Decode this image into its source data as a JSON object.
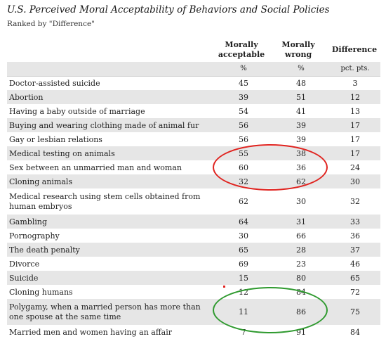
{
  "title": "U.S. Perceived Moral Acceptability of Behaviors and Social Policies",
  "subtitle": "Ranked by \"Difference\"",
  "headers": {
    "acceptable": [
      "Morally",
      "acceptable"
    ],
    "wrong": [
      "Morally",
      "wrong"
    ],
    "difference": "Difference"
  },
  "units": {
    "acceptable": "%",
    "wrong": "%",
    "difference": "pct. pts."
  },
  "rows": [
    {
      "label": "Doctor-assisted suicide",
      "acceptable": "45",
      "wrong": "48",
      "difference": "3"
    },
    {
      "label": "Abortion",
      "acceptable": "39",
      "wrong": "51",
      "difference": "12"
    },
    {
      "label": "Having a baby outside of marriage",
      "acceptable": "54",
      "wrong": "41",
      "difference": "13"
    },
    {
      "label": "Buying and wearing clothing made of animal fur",
      "acceptable": "56",
      "wrong": "39",
      "difference": "17"
    },
    {
      "label": "Gay or lesbian relations",
      "acceptable": "56",
      "wrong": "39",
      "difference": "17"
    },
    {
      "label": "Medical testing on animals",
      "acceptable": "55",
      "wrong": "38",
      "difference": "17"
    },
    {
      "label": "Sex between an unmarried man and woman",
      "acceptable": "60",
      "wrong": "36",
      "difference": "24"
    },
    {
      "label": "Cloning animals",
      "acceptable": "32",
      "wrong": "62",
      "difference": "30"
    },
    {
      "label": "Medical research using stem cells obtained from human embryos",
      "acceptable": "62",
      "wrong": "30",
      "difference": "32"
    },
    {
      "label": "Gambling",
      "acceptable": "64",
      "wrong": "31",
      "difference": "33"
    },
    {
      "label": "Pornography",
      "acceptable": "30",
      "wrong": "66",
      "difference": "36"
    },
    {
      "label": "The death penalty",
      "acceptable": "65",
      "wrong": "28",
      "difference": "37"
    },
    {
      "label": "Divorce",
      "acceptable": "69",
      "wrong": "23",
      "difference": "46"
    },
    {
      "label": "Suicide",
      "acceptable": "15",
      "wrong": "80",
      "difference": "65"
    },
    {
      "label": "Cloning humans",
      "acceptable": "12",
      "wrong": "84",
      "difference": "72"
    },
    {
      "label": "Polygamy, when a married person has more than one spouse at the same time",
      "acceptable": "11",
      "wrong": "86",
      "difference": "75"
    },
    {
      "label": "Married men and women having an affair",
      "acceptable": "7",
      "wrong": "91",
      "difference": "84"
    }
  ],
  "colors": {
    "shade": "#e6e6e6",
    "red_annotation": "#e0231f",
    "green_annotation": "#2f9a2f"
  },
  "chart_data": {
    "type": "table",
    "title": "U.S. Perceived Moral Acceptability of Behaviors and Social Policies",
    "subtitle": "Ranked by \"Difference\"",
    "columns": [
      "Morally acceptable (%)",
      "Morally wrong (%)",
      "Difference (pct. pts.)"
    ],
    "rows": [
      [
        "Doctor-assisted suicide",
        45,
        48,
        3
      ],
      [
        "Abortion",
        39,
        51,
        12
      ],
      [
        "Having a baby outside of marriage",
        54,
        41,
        13
      ],
      [
        "Buying and wearing clothing made of animal fur",
        56,
        39,
        17
      ],
      [
        "Gay or lesbian relations",
        56,
        39,
        17
      ],
      [
        "Medical testing on animals",
        55,
        38,
        17
      ],
      [
        "Sex between an unmarried man and woman",
        60,
        36,
        24
      ],
      [
        "Cloning animals",
        32,
        62,
        30
      ],
      [
        "Medical research using stem cells obtained from human embryos",
        62,
        30,
        32
      ],
      [
        "Gambling",
        64,
        31,
        33
      ],
      [
        "Pornography",
        30,
        66,
        36
      ],
      [
        "The death penalty",
        65,
        28,
        37
      ],
      [
        "Divorce",
        69,
        23,
        46
      ],
      [
        "Suicide",
        15,
        80,
        65
      ],
      [
        "Cloning humans",
        12,
        84,
        72
      ],
      [
        "Polygamy, when a married person has more than one spouse at the same time",
        11,
        86,
        75
      ],
      [
        "Married men and women having an affair",
        7,
        91,
        84
      ]
    ]
  }
}
